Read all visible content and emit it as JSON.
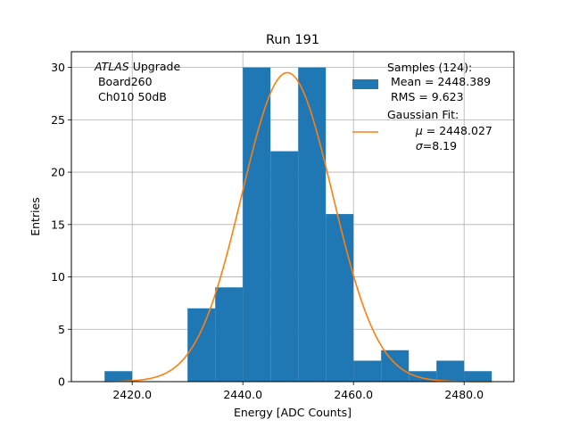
{
  "chart_data": {
    "type": "bar",
    "title": "Run 191",
    "xlabel": "Energy [ADC Counts]",
    "ylabel": "Entries",
    "xlim": [
      2409,
      2489
    ],
    "ylim": [
      0,
      31.5
    ],
    "x_ticks": [
      2420,
      2440,
      2460,
      2480
    ],
    "x_tick_labels": [
      "2420.0",
      "2440.0",
      "2460.0",
      "2480.0"
    ],
    "y_ticks": [
      0,
      5,
      10,
      15,
      20,
      25,
      30
    ],
    "y_tick_labels": [
      "0",
      "5",
      "10",
      "15",
      "20",
      "25",
      "30"
    ],
    "grid": true,
    "legend_position": "top-right",
    "bar_color": "#1f77b4",
    "fit_color": "#ff7f0e",
    "histogram": {
      "bin_edges": [
        2415,
        2420,
        2425,
        2430,
        2435,
        2440,
        2445,
        2450,
        2455,
        2460,
        2465,
        2470,
        2475,
        2480,
        2485
      ],
      "counts": [
        1,
        0,
        0,
        7,
        9,
        30,
        22,
        30,
        16,
        2,
        3,
        1,
        2,
        1
      ]
    },
    "gaussian_fit": {
      "mu": 2448.027,
      "sigma": 8.19,
      "amplitude": 29.5,
      "x_range": [
        2415,
        2485
      ]
    },
    "annotation": {
      "line1_italic": "ATLAS",
      "line1_rest": " Upgrade",
      "line2": " Board260",
      "line3": " Ch010 50dB"
    },
    "legend": {
      "samples_title": "Samples (124):",
      "samples_mean": " Mean = 2448.389",
      "samples_rms": " RMS = 9.623",
      "fit_title": "Gaussian Fit:",
      "fit_mu_symbol": "μ",
      "fit_mu_value": " = 2448.027",
      "fit_sigma_symbol": "σ",
      "fit_sigma_value": "=8.19"
    }
  }
}
